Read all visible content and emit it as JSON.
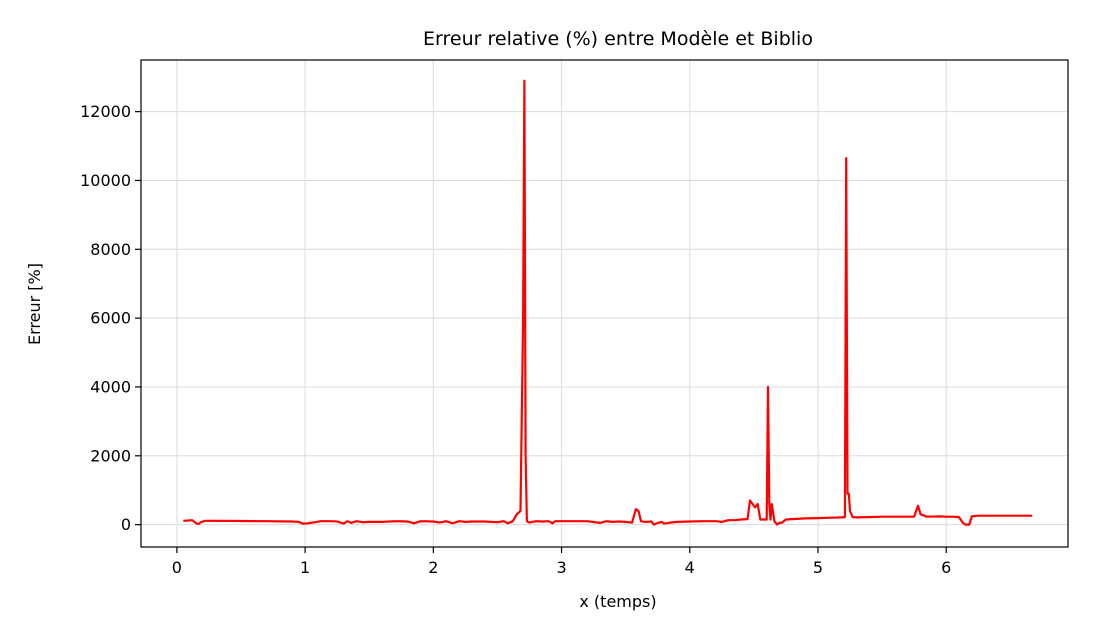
{
  "chart_data": {
    "type": "line",
    "title": "Erreur relative (%) entre Modèle et Biblio",
    "xlabel": "x (temps)",
    "ylabel": "Erreur [%]",
    "xlim": [
      -0.28,
      6.95
    ],
    "ylim": [
      -650,
      13500
    ],
    "x_ticks": [
      0,
      1,
      2,
      3,
      4,
      5,
      6
    ],
    "x_tick_labels": [
      "0",
      "1",
      "2",
      "3",
      "4",
      "5",
      "6"
    ],
    "y_ticks": [
      0,
      2000,
      4000,
      6000,
      8000,
      10000,
      12000
    ],
    "y_tick_labels": [
      "0",
      "2000",
      "4000",
      "6000",
      "8000",
      "10000",
      "12000"
    ],
    "grid": true,
    "legend": "none",
    "series": [
      {
        "color": "#ff0000",
        "x": [
          0.05,
          0.12,
          0.15,
          0.17,
          0.19,
          0.22,
          0.3,
          0.5,
          0.7,
          0.9,
          0.95,
          0.98,
          1.02,
          1.08,
          1.12,
          1.2,
          1.25,
          1.3,
          1.33,
          1.36,
          1.4,
          1.45,
          1.5,
          1.6,
          1.7,
          1.8,
          1.85,
          1.9,
          2.0,
          2.05,
          2.1,
          2.15,
          2.2,
          2.25,
          2.3,
          2.4,
          2.5,
          2.55,
          2.58,
          2.62,
          2.65,
          2.68,
          2.7,
          2.71,
          2.72,
          2.73,
          2.75,
          2.8,
          2.85,
          2.9,
          2.93,
          2.95,
          3.0,
          3.1,
          3.2,
          3.3,
          3.35,
          3.4,
          3.45,
          3.5,
          3.55,
          3.58,
          3.6,
          3.62,
          3.65,
          3.7,
          3.72,
          3.75,
          3.78,
          3.8,
          3.85,
          3.9,
          4.0,
          4.1,
          4.2,
          4.25,
          4.3,
          4.35,
          4.4,
          4.45,
          4.47,
          4.49,
          4.51,
          4.53,
          4.55,
          4.58,
          4.6,
          4.61,
          4.62,
          4.63,
          4.64,
          4.66,
          4.68,
          4.7,
          4.72,
          4.75,
          4.8,
          4.9,
          5.0,
          5.1,
          5.18,
          5.21,
          5.22,
          5.23,
          5.24,
          5.25,
          5.27,
          5.3,
          5.4,
          5.5,
          5.6,
          5.7,
          5.75,
          5.78,
          5.8,
          5.85,
          5.95,
          6.0,
          6.05,
          6.1,
          6.13,
          6.15,
          6.18,
          6.2,
          6.25,
          6.4,
          6.6,
          6.67
        ],
        "y": [
          110,
          130,
          40,
          20,
          80,
          110,
          110,
          105,
          100,
          90,
          80,
          30,
          40,
          70,
          100,
          100,
          90,
          30,
          100,
          50,
          100,
          70,
          80,
          80,
          100,
          90,
          40,
          100,
          90,
          60,
          100,
          40,
          100,
          80,
          90,
          90,
          70,
          100,
          40,
          100,
          300,
          400,
          6000,
          12900,
          2000,
          100,
          60,
          100,
          90,
          100,
          40,
          100,
          100,
          100,
          100,
          50,
          100,
          80,
          90,
          80,
          60,
          450,
          400,
          100,
          80,
          90,
          0,
          50,
          80,
          30,
          60,
          80,
          90,
          100,
          100,
          80,
          130,
          130,
          150,
          160,
          700,
          600,
          500,
          600,
          150,
          150,
          150,
          4000,
          600,
          150,
          600,
          100,
          0,
          50,
          60,
          150,
          160,
          180,
          190,
          200,
          210,
          220,
          10650,
          900,
          900,
          400,
          220,
          210,
          220,
          230,
          230,
          230,
          230,
          550,
          300,
          230,
          240,
          230,
          230,
          220,
          50,
          0,
          0,
          240,
          260,
          260,
          260,
          260
        ]
      }
    ]
  }
}
